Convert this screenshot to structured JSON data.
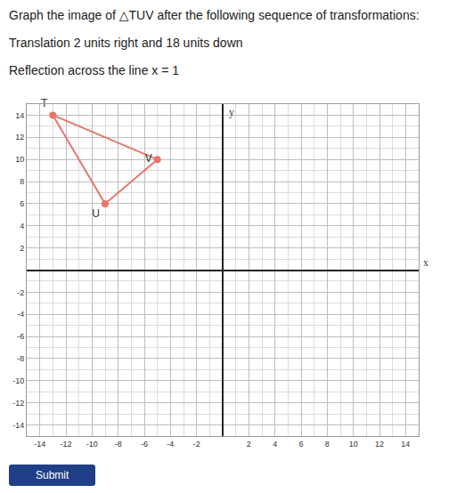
{
  "header": {
    "title": "Graph the image of △TUV after the following sequence of transformations:",
    "steps": [
      "Translation 2 units right and 18 units down",
      "Reflection across the line x = 1"
    ]
  },
  "chart_data": {
    "type": "line",
    "x_label": "x",
    "y_label": "y",
    "points": [
      {
        "label": "T",
        "x": -13,
        "y": 14
      },
      {
        "label": "U",
        "x": -9,
        "y": 6
      },
      {
        "label": "V",
        "x": -5,
        "y": 10
      }
    ],
    "color": "#e8756a",
    "marker": "circle",
    "xlim": [
      -15,
      15
    ],
    "ylim": [
      -15,
      15
    ],
    "xticks": [
      -14,
      -12,
      -10,
      -8,
      -6,
      -4,
      -2,
      2,
      4,
      6,
      8,
      10,
      12,
      14
    ],
    "yticks": [
      -14,
      -12,
      -10,
      -8,
      -6,
      -4,
      -2,
      2,
      4,
      6,
      8,
      10,
      12,
      14
    ],
    "grid": true
  },
  "button": "Submit"
}
